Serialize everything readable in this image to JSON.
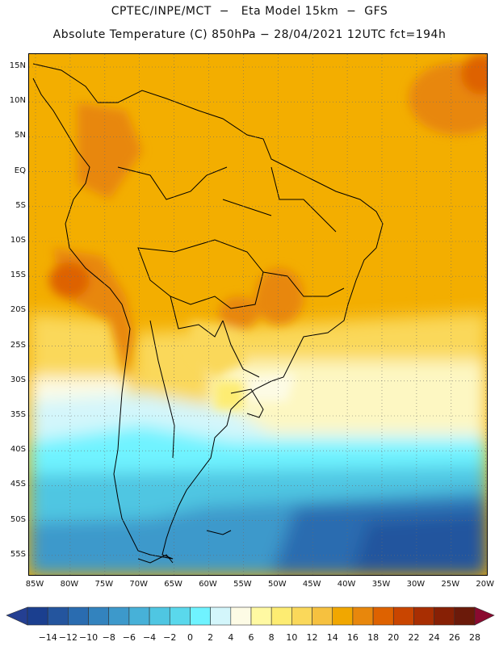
{
  "header": {
    "line1": "CPTEC/INPE/MCT  −   Eta Model 15km  −  GFS",
    "line2": "Absolute Temperature (C) 850hPa − 28/04/2021 12UTC fct=194h"
  },
  "map": {
    "lat_labels": [
      "15N",
      "10N",
      "5N",
      "EQ",
      "5S",
      "10S",
      "15S",
      "20S",
      "25S",
      "30S",
      "35S",
      "40S",
      "45S",
      "50S",
      "55S"
    ],
    "lon_labels": [
      "85W",
      "80W",
      "75W",
      "70W",
      "65W",
      "60W",
      "55W",
      "50W",
      "45W",
      "40W",
      "35W",
      "30W",
      "25W",
      "20W"
    ]
  },
  "legend": {
    "labels": [
      "−14",
      "−12",
      "−10",
      "−8",
      "−6",
      "−4",
      "−2",
      "0",
      "2",
      "4",
      "6",
      "8",
      "10",
      "12",
      "14",
      "16",
      "18",
      "20",
      "22",
      "24",
      "26",
      "28"
    ],
    "colors": [
      "#1b3f8f",
      "#24559e",
      "#2a6cb0",
      "#3383be",
      "#3d99cb",
      "#47b1d8",
      "#4fc6e2",
      "#5ad8ec",
      "#6ff3ff",
      "#d3f6fb",
      "#fdfbe5",
      "#fff9a2",
      "#fdec72",
      "#fad85a",
      "#f6c13f",
      "#f1a700",
      "#e8870c",
      "#de6200",
      "#c94500",
      "#a82e02",
      "#872005",
      "#6b1a0a"
    ],
    "end_colors": [
      "#243f92",
      "#8a0a30"
    ]
  }
}
